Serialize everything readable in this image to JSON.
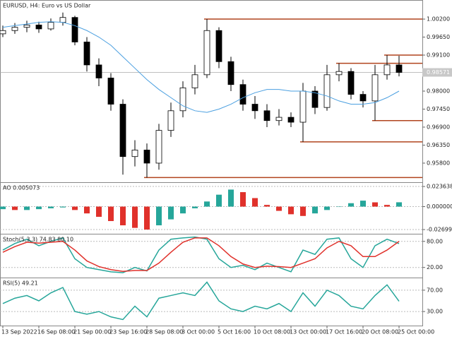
{
  "chart_data": [
    {
      "type": "candlestick",
      "title": "EURUSD, H4:  Euro vs US Dollar",
      "ylim": [
        0.9526,
        1.0074
      ],
      "yticks": [
        {
          "value": 1.002,
          "label": "1.00200"
        },
        {
          "value": 0.9965,
          "label": "0.99650"
        },
        {
          "value": 0.991,
          "label": "0.99100"
        },
        {
          "value": 0.98,
          "label": "0.98000"
        },
        {
          "value": 0.9745,
          "label": "0.97450"
        },
        {
          "value": 0.969,
          "label": "0.96900"
        },
        {
          "value": 0.9635,
          "label": "0.96350"
        },
        {
          "value": 0.958,
          "label": "0.95800"
        }
      ],
      "open": [
        0.9975,
        0.9985,
        0.9995,
        1.0002,
        0.999,
        1.001,
        1.0025,
        0.995,
        0.988,
        0.984,
        0.976,
        0.96,
        0.962,
        0.958,
        0.968,
        0.974,
        0.981,
        0.985,
        0.9985,
        0.989,
        0.982,
        0.976,
        0.974,
        0.971,
        0.972,
        0.9705,
        0.98,
        0.975,
        0.985,
        0.986,
        0.979,
        0.977,
        0.985,
        0.988
      ],
      "high": [
        1.0,
        1.0008,
        1.0015,
        1.0012,
        1.0022,
        1.004,
        1.003,
        0.9965,
        0.99,
        0.9855,
        0.9775,
        0.965,
        0.964,
        0.97,
        0.9765,
        0.983,
        0.988,
        1.002,
        0.9995,
        0.9905,
        0.9835,
        0.9785,
        0.976,
        0.9745,
        0.9735,
        0.9825,
        0.9815,
        0.988,
        0.9885,
        0.987,
        0.98,
        0.988,
        0.991,
        0.9908
      ],
      "low": [
        0.9965,
        0.9975,
        0.998,
        0.9978,
        0.9985,
        1.0,
        0.994,
        0.986,
        0.9815,
        0.974,
        0.9545,
        0.957,
        0.9536,
        0.956,
        0.966,
        0.972,
        0.979,
        0.984,
        0.987,
        0.98,
        0.974,
        0.9715,
        0.969,
        0.9695,
        0.969,
        0.9645,
        0.973,
        0.974,
        0.983,
        0.9775,
        0.975,
        0.971,
        0.9835,
        0.9845
      ],
      "close": [
        0.9985,
        0.9995,
        1.0002,
        0.999,
        1.001,
        1.0025,
        0.995,
        0.988,
        0.984,
        0.976,
        0.96,
        0.962,
        0.958,
        0.968,
        0.974,
        0.981,
        0.985,
        0.9985,
        0.989,
        0.982,
        0.976,
        0.974,
        0.971,
        0.972,
        0.9705,
        0.98,
        0.975,
        0.985,
        0.986,
        0.979,
        0.977,
        0.985,
        0.988,
        0.98571
      ],
      "up_color": "#ffffff",
      "down_color": "#000000",
      "ma": {
        "color": "#4a9fe0",
        "values": [
          0.9995,
          1.0,
          1.0005,
          1.001,
          1.0012,
          1.001,
          1.0,
          0.9985,
          0.9965,
          0.994,
          0.9905,
          0.987,
          0.9835,
          0.9805,
          0.978,
          0.9755,
          0.974,
          0.9735,
          0.9745,
          0.976,
          0.978,
          0.9795,
          0.9805,
          0.9805,
          0.98,
          0.98,
          0.9795,
          0.9785,
          0.977,
          0.976,
          0.976,
          0.9765,
          0.978,
          0.98
        ]
      },
      "level_color": "#b1441e",
      "levels": [
        {
          "value": 1.002,
          "start": 17
        },
        {
          "value": 0.991,
          "start": 32
        },
        {
          "value": 0.9885,
          "start": 28
        },
        {
          "value": 0.971,
          "start": 31
        },
        {
          "value": 0.9645,
          "start": 25
        },
        {
          "value": 0.9536,
          "start": 12
        }
      ],
      "last_price": 0.98571
    },
    {
      "type": "bar",
      "title": "AO 0.005073",
      "ylim": [
        -0.0311,
        0.027
      ],
      "yticks": [
        0.023638,
        {
          "value": 0,
          "label": "0.000000"
        },
        {
          "value": -0.02699,
          "label": "-0.026990"
        }
      ],
      "up_color": "#26a69a",
      "down_color": "#e0312b",
      "values": [
        -0.003,
        -0.004,
        -0.004,
        -0.003,
        -0.002,
        -0.001,
        -0.004,
        -0.008,
        -0.012,
        -0.017,
        -0.022,
        -0.025,
        -0.027,
        -0.022,
        -0.015,
        -0.008,
        -0.002,
        0.006,
        0.014,
        0.02,
        0.017,
        0.01,
        0.002,
        -0.005,
        -0.009,
        -0.011,
        -0.008,
        -0.004,
        0.0,
        0.004,
        0.007,
        0.005,
        0.002,
        0.005073
      ]
    },
    {
      "type": "line",
      "title": "Stoch(5,3,3) 74.83 80.10",
      "ylim": [
        0,
        91
      ],
      "yticks": [
        {
          "value": 80,
          "label": "80.00"
        },
        {
          "value": 20,
          "label": "20.00"
        }
      ],
      "series": [
        {
          "color": "#26a69a",
          "values": [
            60,
            75,
            85,
            70,
            80,
            88,
            40,
            20,
            15,
            10,
            8,
            20,
            12,
            60,
            85,
            88,
            90,
            85,
            40,
            20,
            25,
            15,
            30,
            20,
            10,
            60,
            50,
            85,
            88,
            40,
            20,
            70,
            85,
            74.83
          ]
        },
        {
          "color": "#e0312b",
          "values": [
            55,
            68,
            78,
            76,
            78,
            80,
            60,
            35,
            22,
            15,
            11,
            13,
            13,
            30,
            55,
            78,
            88,
            88,
            70,
            45,
            28,
            20,
            23,
            22,
            20,
            30,
            40,
            65,
            80,
            70,
            45,
            45,
            60,
            80.1
          ]
        }
      ]
    },
    {
      "type": "line",
      "title": "RSI(5) 49.21",
      "ylim": [
        5,
        91
      ],
      "yticks": [
        {
          "value": 70,
          "label": "70.00"
        },
        {
          "value": 30,
          "label": "30.00"
        }
      ],
      "series": [
        {
          "color": "#26a69a",
          "values": [
            45,
            55,
            60,
            50,
            65,
            75,
            30,
            25,
            30,
            20,
            15,
            40,
            20,
            55,
            60,
            65,
            60,
            85,
            50,
            35,
            30,
            40,
            35,
            45,
            30,
            65,
            40,
            70,
            60,
            40,
            35,
            60,
            80,
            49.21
          ]
        }
      ],
      "categories": [
        "13 Sep 2022",
        null,
        null,
        "16 Sep 08:00",
        null,
        null,
        "21 Sep 00:00",
        null,
        null,
        "23 Sep 16:00",
        null,
        null,
        "28 Sep 08:00",
        null,
        null,
        "3 Oct 00:00",
        null,
        null,
        "5 Oct 16:00",
        null,
        null,
        "10 Oct 08:00",
        null,
        null,
        "13 Oct 00:00",
        null,
        null,
        "17 Oct 16:00",
        null,
        null,
        "20 Oct 08:00",
        null,
        null,
        "25 Oct 00:00"
      ]
    }
  ]
}
